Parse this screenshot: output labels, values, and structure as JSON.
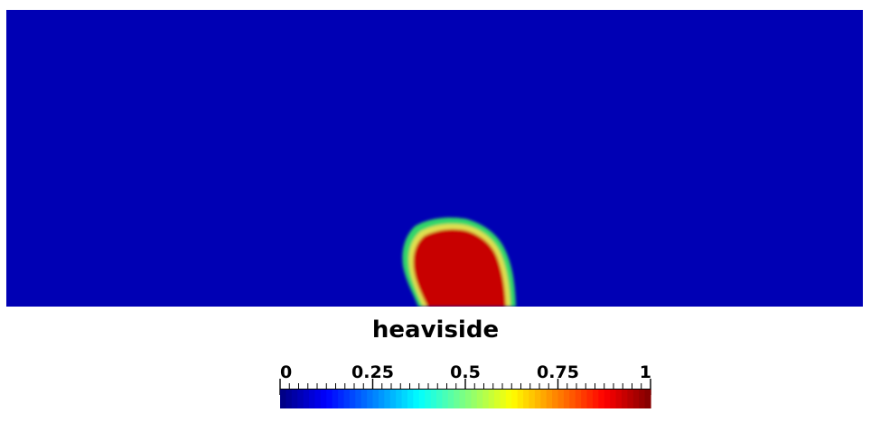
{
  "viewport": {
    "background_color": "#0000b4",
    "outer_band_color": "#33d66b",
    "inner_rim_color": "#e0e050",
    "core_color": "#c80000"
  },
  "colorbar": {
    "title": "heaviside",
    "range": [
      0,
      1
    ],
    "tick_values": [
      0,
      0.25,
      0.5,
      0.75,
      1
    ],
    "tick_labels": [
      "0",
      "0.25",
      "0.5",
      "0.75",
      "1"
    ],
    "colormap": "jet",
    "color_steps": 64,
    "minor_tick_count": 41
  }
}
